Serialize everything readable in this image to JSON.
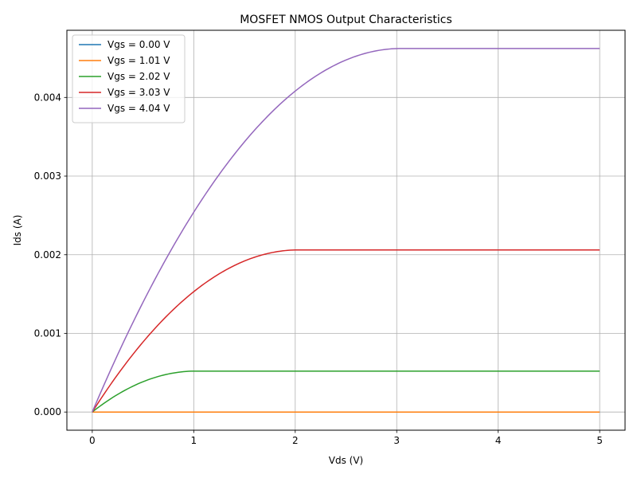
{
  "chart_data": {
    "type": "line",
    "title": "MOSFET NMOS Output Characteristics",
    "xlabel": "Vds (V)",
    "ylabel": "Ids (A)",
    "xlim": [
      -0.25,
      5.25
    ],
    "ylim": [
      -0.000231,
      0.004854
    ],
    "xticks": [
      0,
      1,
      2,
      3,
      4,
      5
    ],
    "xtick_labels": [
      "0",
      "1",
      "2",
      "3",
      "4",
      "5"
    ],
    "yticks": [
      0,
      0.001,
      0.002,
      0.003,
      0.004
    ],
    "ytick_labels": [
      "0.000",
      "0.001",
      "0.002",
      "0.003",
      "0.004"
    ],
    "grid": true,
    "legend_position": "top-left",
    "model": {
      "vth": 1.0,
      "k": 0.0005,
      "vds_min": 0,
      "vds_max": 5
    },
    "series": [
      {
        "name": "Vgs = 0.00 V",
        "vgs": 0.0,
        "color": "#1f77b4"
      },
      {
        "name": "Vgs = 1.01 V",
        "vgs": 1.0101,
        "color": "#ff7f0e"
      },
      {
        "name": "Vgs = 2.02 V",
        "vgs": 2.0202,
        "color": "#2ca02c"
      },
      {
        "name": "Vgs = 3.03 V",
        "vgs": 3.0303,
        "color": "#d62728"
      },
      {
        "name": "Vgs = 4.04 V",
        "vgs": 4.0404,
        "color": "#9467bd"
      }
    ]
  }
}
